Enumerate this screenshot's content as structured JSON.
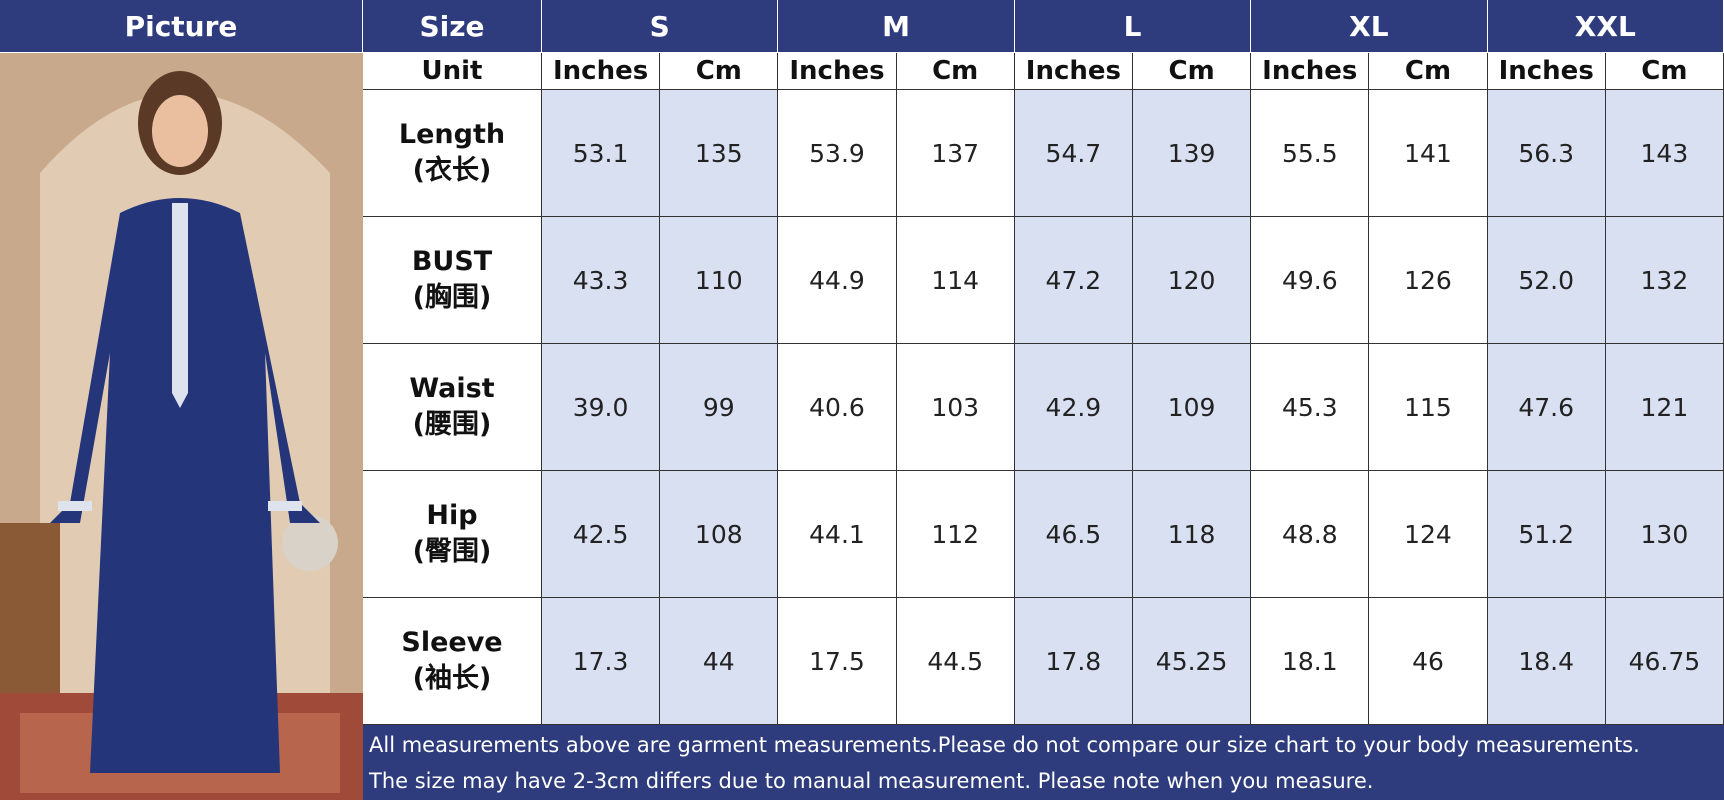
{
  "header": {
    "picture": "Picture",
    "size": "Size",
    "sizes": [
      "S",
      "M",
      "L",
      "XL",
      "XXL"
    ]
  },
  "unit_row": {
    "label": "Unit",
    "units": [
      "Inches",
      "Cm"
    ]
  },
  "rows": [
    {
      "name": "Length",
      "name_cn": "(衣长)",
      "values": [
        "53.1",
        "135",
        "53.9",
        "137",
        "54.7",
        "139",
        "55.5",
        "141",
        "56.3",
        "143"
      ]
    },
    {
      "name": "BUST",
      "name_cn": "(胸围)",
      "values": [
        "43.3",
        "110",
        "44.9",
        "114",
        "47.2",
        "120",
        "49.6",
        "126",
        "52.0",
        "132"
      ]
    },
    {
      "name": "Waist",
      "name_cn": "(腰围)",
      "values": [
        "39.0",
        "99",
        "40.6",
        "103",
        "42.9",
        "109",
        "45.3",
        "115",
        "47.6",
        "121"
      ]
    },
    {
      "name": "Hip",
      "name_cn": "(臀围)",
      "values": [
        "42.5",
        "108",
        "44.1",
        "112",
        "46.5",
        "118",
        "48.8",
        "124",
        "51.2",
        "130"
      ]
    },
    {
      "name": "Sleeve",
      "name_cn": "(袖长)",
      "values": [
        "17.3",
        "44",
        "17.5",
        "44.5",
        "17.8",
        "45.25",
        "18.1",
        "46",
        "18.4",
        "46.75"
      ]
    }
  ],
  "notes": [
    "All measurements above are garment measurements.Please do not compare our size chart to your body measurements.",
    "The size may have 2-3cm differs due to manual measurement. Please note when you measure."
  ]
}
